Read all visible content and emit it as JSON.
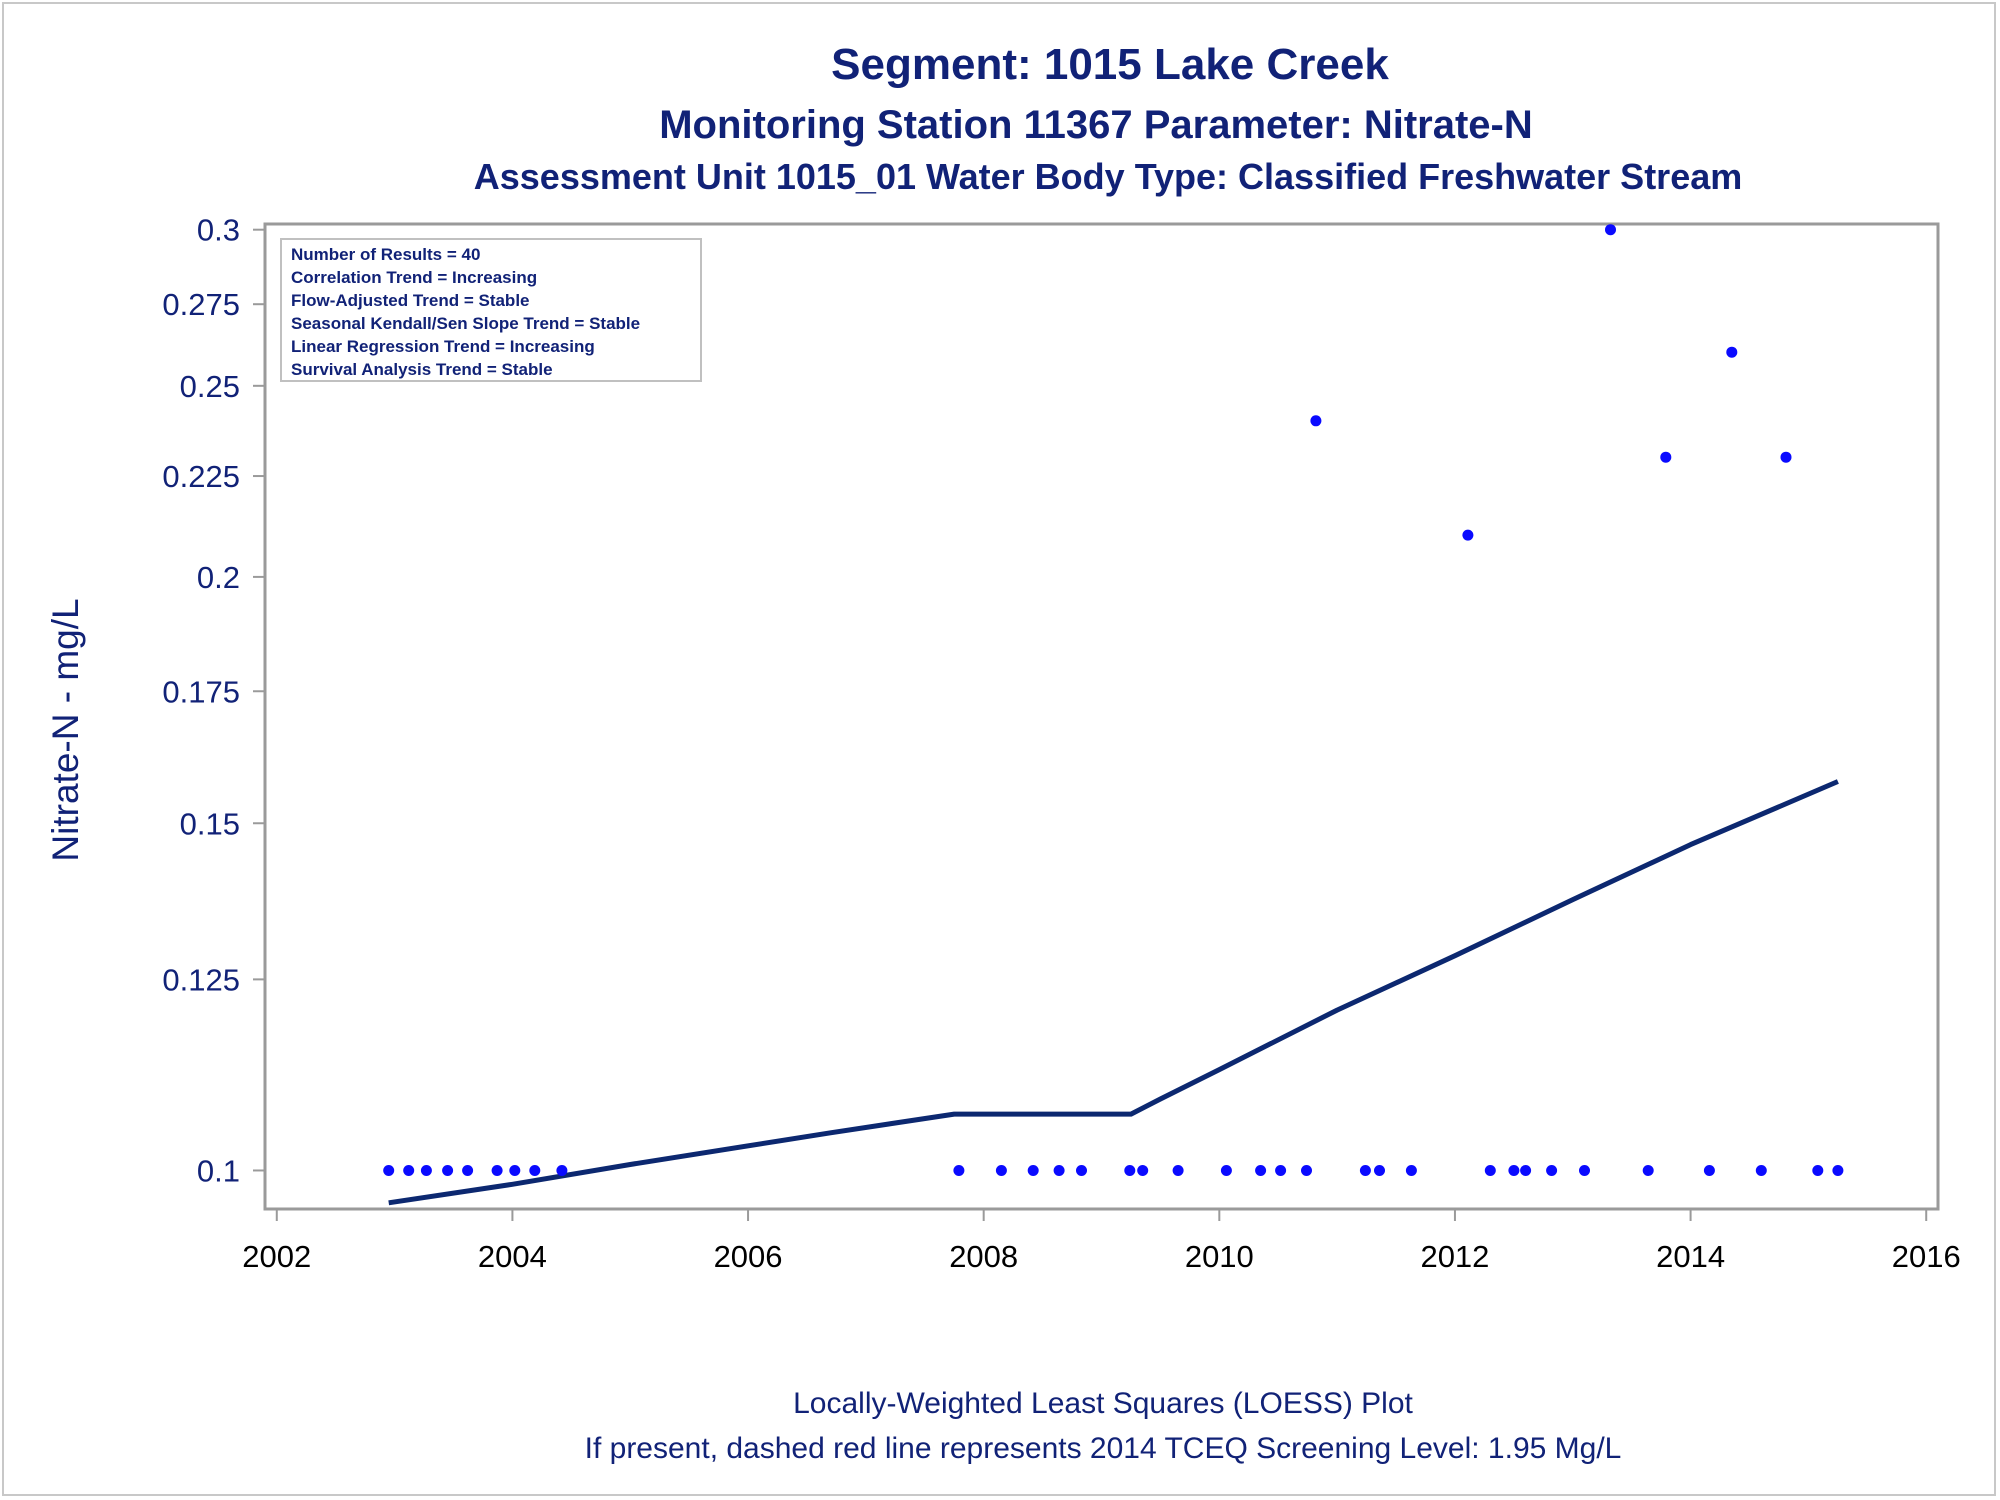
{
  "titles": {
    "line1": "Segment: 1015  Lake Creek",
    "line2": "Monitoring Station 11367 Parameter: Nitrate-N",
    "line3": "Assessment Unit 1015_01   Water Body Type: Classified Freshwater Stream"
  },
  "footnotes": {
    "line1": "Locally-Weighted Least Squares (LOESS) Plot",
    "line2": "If present, dashed red line represents 2014 TCEQ Screening Level: 1.95 Mg/L"
  },
  "stats_box": [
    "Number of Results = 40",
    "Correlation Trend = Increasing",
    "Flow-Adjusted Trend = Stable",
    "Seasonal Kendall/Sen Slope Trend = Stable",
    "Linear Regression Trend = Increasing",
    "Survival Analysis Trend = Stable"
  ],
  "colors": {
    "text": "#112277",
    "points": "#0a0aff",
    "loess_line": "#0c2870",
    "axis": "#9a9a9a"
  },
  "chart_data": {
    "type": "scatter",
    "title": "Segment: 1015  Lake Creek",
    "xlabel": "",
    "ylabel": "Nitrate-N - mg/L",
    "y_scale": "log",
    "xlim": [
      2001.9,
      2016.1
    ],
    "ylim": [
      0.0956,
      0.302
    ],
    "x_ticks": [
      "2002",
      "2004",
      "2006",
      "2008",
      "2010",
      "2012",
      "2014",
      "2016"
    ],
    "y_ticks": [
      "0.1",
      "0.125",
      "0.15",
      "0.175",
      "0.2",
      "0.225",
      "0.25",
      "0.275",
      "0.3"
    ],
    "grid": false,
    "series": [
      {
        "type": "scatter",
        "points": [
          [
            2002.95,
            0.1
          ],
          [
            2003.12,
            0.1
          ],
          [
            2003.27,
            0.1
          ],
          [
            2003.45,
            0.1
          ],
          [
            2003.62,
            0.1
          ],
          [
            2003.87,
            0.1
          ],
          [
            2004.02,
            0.1
          ],
          [
            2004.19,
            0.1
          ],
          [
            2004.42,
            0.1
          ],
          [
            2007.79,
            0.1
          ],
          [
            2008.15,
            0.1
          ],
          [
            2008.42,
            0.1
          ],
          [
            2008.64,
            0.1
          ],
          [
            2008.83,
            0.1
          ],
          [
            2009.24,
            0.1
          ],
          [
            2009.35,
            0.1
          ],
          [
            2009.65,
            0.1
          ],
          [
            2010.06,
            0.1
          ],
          [
            2010.35,
            0.1
          ],
          [
            2010.52,
            0.1
          ],
          [
            2010.74,
            0.1
          ],
          [
            2010.82,
            0.24
          ],
          [
            2011.24,
            0.1
          ],
          [
            2011.36,
            0.1
          ],
          [
            2011.63,
            0.1
          ],
          [
            2012.11,
            0.21
          ],
          [
            2012.3,
            0.1
          ],
          [
            2012.5,
            0.1
          ],
          [
            2012.6,
            0.1
          ],
          [
            2012.82,
            0.1
          ],
          [
            2013.1,
            0.1
          ],
          [
            2013.32,
            0.3
          ],
          [
            2013.64,
            0.1
          ],
          [
            2013.79,
            0.23
          ],
          [
            2014.16,
            0.1
          ],
          [
            2014.35,
            0.26
          ],
          [
            2014.6,
            0.1
          ],
          [
            2014.81,
            0.23
          ],
          [
            2015.08,
            0.1
          ],
          [
            2015.25,
            0.1
          ]
        ]
      },
      {
        "type": "line",
        "points": [
          [
            2002.95,
            0.0963
          ],
          [
            2004.0,
            0.0984
          ],
          [
            2005.0,
            0.1007
          ],
          [
            2006.7,
            0.1045
          ],
          [
            2007.75,
            0.1068
          ],
          [
            2009.25,
            0.1068
          ],
          [
            2009.5,
            0.1087
          ],
          [
            2010.0,
            0.1125
          ],
          [
            2011.0,
            0.1206
          ],
          [
            2012.0,
            0.1285
          ],
          [
            2013.0,
            0.1372
          ],
          [
            2014.0,
            0.1463
          ],
          [
            2015.25,
            0.1575
          ]
        ]
      }
    ]
  }
}
